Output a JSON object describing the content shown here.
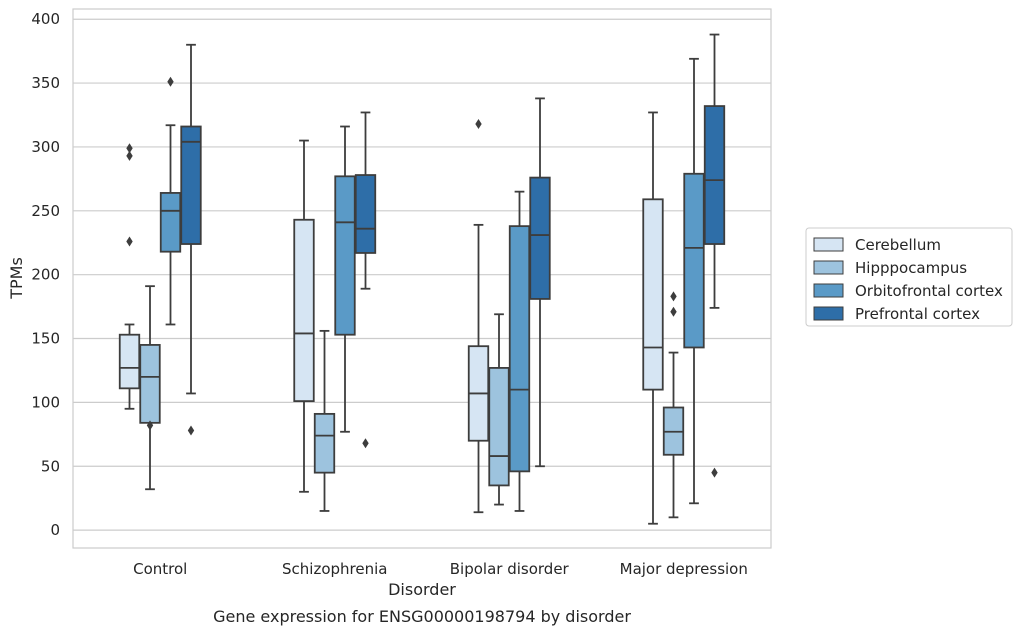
{
  "chart_data": {
    "type": "box",
    "xlabel": "Disorder",
    "ylabel": "TPMs",
    "caption": "Gene expression for ENSG00000198794 by disorder",
    "ylim": [
      -14,
      408
    ],
    "yticks": [
      0,
      50,
      100,
      150,
      200,
      250,
      300,
      350,
      400
    ],
    "grid": "horizontal",
    "legend_position": "right",
    "categories": [
      "Control",
      "Schizophrenia",
      "Bipolar disorder",
      "Major depression"
    ],
    "series": [
      {
        "name": "Cerebellum",
        "color": "#d6e5f3",
        "boxes": [
          {
            "whisker_low": 95,
            "q1": 111,
            "median": 127,
            "q3": 153,
            "whisker_high": 161,
            "outliers": [
              226,
              293,
              299
            ]
          },
          {
            "whisker_low": 30,
            "q1": 101,
            "median": 154,
            "q3": 243,
            "whisker_high": 305,
            "outliers": []
          },
          {
            "whisker_low": 14,
            "q1": 70,
            "median": 107,
            "q3": 144,
            "whisker_high": 239,
            "outliers": [
              318
            ]
          },
          {
            "whisker_low": 5,
            "q1": 110,
            "median": 143,
            "q3": 259,
            "whisker_high": 327,
            "outliers": []
          }
        ]
      },
      {
        "name": "Hipppocampus",
        "color": "#9dc3de",
        "boxes": [
          {
            "whisker_low": 32,
            "q1": 84,
            "median": 120,
            "q3": 145,
            "whisker_high": 191,
            "outliers": [
              82
            ]
          },
          {
            "whisker_low": 15,
            "q1": 45,
            "median": 74,
            "q3": 91,
            "whisker_high": 156,
            "outliers": []
          },
          {
            "whisker_low": 20,
            "q1": 35,
            "median": 58,
            "q3": 127,
            "whisker_high": 169,
            "outliers": []
          },
          {
            "whisker_low": 10,
            "q1": 59,
            "median": 77,
            "q3": 96,
            "whisker_high": 139,
            "outliers": [
              171,
              183
            ]
          }
        ]
      },
      {
        "name": "Orbitofrontal cortex",
        "color": "#5a9ac7",
        "boxes": [
          {
            "whisker_low": 161,
            "q1": 218,
            "median": 250,
            "q3": 264,
            "whisker_high": 317,
            "outliers": [
              351
            ]
          },
          {
            "whisker_low": 77,
            "q1": 153,
            "median": 241,
            "q3": 277,
            "whisker_high": 316,
            "outliers": []
          },
          {
            "whisker_low": 15,
            "q1": 46,
            "median": 110,
            "q3": 238,
            "whisker_high": 265,
            "outliers": []
          },
          {
            "whisker_low": 21,
            "q1": 143,
            "median": 221,
            "q3": 279,
            "whisker_high": 369,
            "outliers": []
          }
        ]
      },
      {
        "name": "Prefrontal cortex",
        "color": "#2e6ea8",
        "boxes": [
          {
            "whisker_low": 107,
            "q1": 224,
            "median": 304,
            "q3": 316,
            "whisker_high": 380,
            "outliers": [
              78
            ]
          },
          {
            "whisker_low": 189,
            "q1": 217,
            "median": 236,
            "q3": 278,
            "whisker_high": 327,
            "outliers": [
              68
            ]
          },
          {
            "whisker_low": 50,
            "q1": 181,
            "median": 231,
            "q3": 276,
            "whisker_high": 338,
            "outliers": []
          },
          {
            "whisker_low": 174,
            "q1": 224,
            "median": 274,
            "q3": 332,
            "whisker_high": 388,
            "outliers": [
              45
            ]
          }
        ]
      }
    ]
  }
}
